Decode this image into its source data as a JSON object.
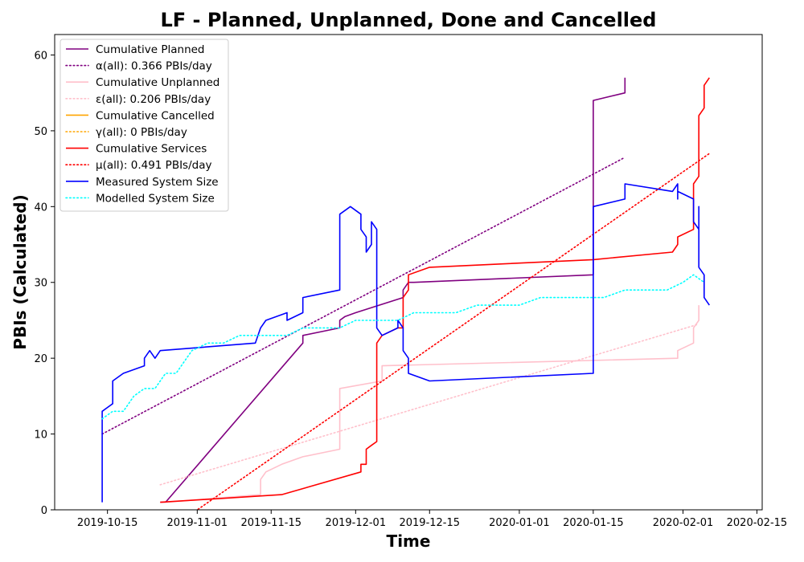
{
  "chart_data": {
    "type": "line",
    "title": "LF - Planned, Unplanned, Done  and Cancelled",
    "xlabel": "Time",
    "ylabel": "PBIs (Calculated)",
    "x_type": "date",
    "x_range": [
      "2019-10-05",
      "2020-02-16"
    ],
    "ylim": [
      0,
      62.7
    ],
    "x_ticks": [
      "2019-10-15",
      "2019-11-01",
      "2019-11-15",
      "2019-12-01",
      "2019-12-15",
      "2020-01-01",
      "2020-01-15",
      "2020-02-01",
      "2020-02-15"
    ],
    "y_ticks": [
      0,
      10,
      20,
      30,
      40,
      50,
      60
    ],
    "grid": false,
    "legend_position": "top-left",
    "series": [
      {
        "name": "Cumulative Planned",
        "color": "#800080",
        "style": "solid",
        "points": [
          [
            "2019-10-25",
            1
          ],
          [
            "2019-10-26",
            1
          ],
          [
            "2019-11-21",
            22
          ],
          [
            "2019-11-21",
            23
          ],
          [
            "2019-11-28",
            24
          ],
          [
            "2019-11-28",
            25
          ],
          [
            "2019-11-29",
            25.5
          ],
          [
            "2019-12-01",
            26
          ],
          [
            "2019-12-10",
            28
          ],
          [
            "2019-12-10",
            29
          ],
          [
            "2019-12-11",
            30
          ],
          [
            "2019-12-12",
            30
          ],
          [
            "2020-01-15",
            31
          ],
          [
            "2020-01-15",
            40
          ],
          [
            "2020-01-15",
            54
          ],
          [
            "2020-01-21",
            55
          ],
          [
            "2020-01-21",
            57
          ]
        ]
      },
      {
        "name": "α(all): 0.366 PBIs/day",
        "color": "#800080",
        "style": "dotted",
        "points": [
          [
            "2019-10-14",
            10
          ],
          [
            "2020-01-21",
            46.5
          ]
        ]
      },
      {
        "name": "Cumulative Unplanned",
        "color": "#ffc0cb",
        "style": "solid",
        "points": [
          [
            "2019-10-25",
            1
          ],
          [
            "2019-10-26",
            1
          ],
          [
            "2019-11-13",
            2
          ],
          [
            "2019-11-13",
            4
          ],
          [
            "2019-11-14",
            5
          ],
          [
            "2019-11-17",
            6
          ],
          [
            "2019-11-21",
            7
          ],
          [
            "2019-11-28",
            8
          ],
          [
            "2019-11-28",
            16
          ],
          [
            "2019-12-06",
            17
          ],
          [
            "2019-12-06",
            19
          ],
          [
            "2020-01-31",
            20
          ],
          [
            "2020-01-31",
            21
          ],
          [
            "2020-02-03",
            22
          ],
          [
            "2020-02-03",
            24
          ],
          [
            "2020-02-04",
            25
          ],
          [
            "2020-02-04",
            27
          ]
        ]
      },
      {
        "name": "ε(all): 0.206 PBIs/day",
        "color": "#ffc0cb",
        "style": "dotted",
        "points": [
          [
            "2019-10-25",
            3.3
          ],
          [
            "2020-02-04",
            24.5
          ]
        ]
      },
      {
        "name": "Cumulative Cancelled",
        "color": "#ffa500",
        "style": "solid",
        "points": []
      },
      {
        "name": "γ(all): 0 PBIs/day",
        "color": "#ffa500",
        "style": "dotted",
        "points": []
      },
      {
        "name": "Cumulative Services",
        "color": "#ff0000",
        "style": "solid",
        "points": [
          [
            "2019-10-25",
            1
          ],
          [
            "2019-11-17",
            2
          ],
          [
            "2019-12-02",
            5
          ],
          [
            "2019-12-02",
            6
          ],
          [
            "2019-12-03",
            6
          ],
          [
            "2019-12-03",
            8
          ],
          [
            "2019-12-04",
            8.5
          ],
          [
            "2019-12-05",
            9
          ],
          [
            "2019-12-05",
            22
          ],
          [
            "2019-12-06",
            23
          ],
          [
            "2019-12-09",
            24
          ],
          [
            "2019-12-10",
            24
          ],
          [
            "2019-12-10",
            28
          ],
          [
            "2019-12-11",
            29
          ],
          [
            "2019-12-11",
            31
          ],
          [
            "2019-12-15",
            32
          ],
          [
            "2020-01-15",
            33
          ],
          [
            "2020-01-30",
            34
          ],
          [
            "2020-01-31",
            35
          ],
          [
            "2020-01-31",
            36
          ],
          [
            "2020-02-03",
            37
          ],
          [
            "2020-02-03",
            43
          ],
          [
            "2020-02-04",
            44
          ],
          [
            "2020-02-04",
            52
          ],
          [
            "2020-02-05",
            53
          ],
          [
            "2020-02-05",
            56
          ],
          [
            "2020-02-06",
            57
          ]
        ]
      },
      {
        "name": "μ(all): 0.491 PBIs/day",
        "color": "#ff0000",
        "style": "dotted",
        "points": [
          [
            "2019-10-31",
            -0.5
          ],
          [
            "2020-02-06",
            47
          ]
        ]
      },
      {
        "name": "Measured System Size",
        "color": "#0000ff",
        "style": "solid",
        "points": [
          [
            "2019-10-14",
            1
          ],
          [
            "2019-10-14",
            13
          ],
          [
            "2019-10-15",
            13.5
          ],
          [
            "2019-10-16",
            14
          ],
          [
            "2019-10-16",
            17
          ],
          [
            "2019-10-18",
            18
          ],
          [
            "2019-10-22",
            19
          ],
          [
            "2019-10-22",
            20
          ],
          [
            "2019-10-23",
            21
          ],
          [
            "2019-10-24",
            20
          ],
          [
            "2019-10-25",
            21
          ],
          [
            "2019-11-12",
            22
          ],
          [
            "2019-11-13",
            24
          ],
          [
            "2019-11-14",
            25
          ],
          [
            "2019-11-18",
            26
          ],
          [
            "2019-11-18",
            25
          ],
          [
            "2019-11-21",
            26
          ],
          [
            "2019-11-21",
            28
          ],
          [
            "2019-11-28",
            29
          ],
          [
            "2019-11-28",
            39
          ],
          [
            "2019-11-30",
            40
          ],
          [
            "2019-12-02",
            39
          ],
          [
            "2019-12-02",
            37
          ],
          [
            "2019-12-03",
            36
          ],
          [
            "2019-12-03",
            34
          ],
          [
            "2019-12-04",
            35
          ],
          [
            "2019-12-04",
            38
          ],
          [
            "2019-12-05",
            37
          ],
          [
            "2019-12-05",
            24
          ],
          [
            "2019-12-06",
            23
          ],
          [
            "2019-12-09",
            24
          ],
          [
            "2019-12-09",
            25
          ],
          [
            "2019-12-10",
            24
          ],
          [
            "2019-12-10",
            21
          ],
          [
            "2019-12-11",
            20
          ],
          [
            "2019-12-11",
            19
          ],
          [
            "2019-12-11",
            18
          ],
          [
            "2019-12-15",
            17
          ],
          [
            "2020-01-15",
            18
          ],
          [
            "2020-01-15",
            25
          ],
          [
            "2020-01-15",
            40
          ],
          [
            "2020-01-21",
            41
          ],
          [
            "2020-01-21",
            43
          ],
          [
            "2020-01-30",
            42
          ],
          [
            "2020-01-31",
            43
          ],
          [
            "2020-01-31",
            41
          ],
          [
            "2020-01-31",
            42
          ],
          [
            "2020-02-03",
            41
          ],
          [
            "2020-02-03",
            40
          ],
          [
            "2020-02-03",
            38
          ],
          [
            "2020-02-04",
            37
          ],
          [
            "2020-02-04",
            40
          ],
          [
            "2020-02-04",
            32
          ],
          [
            "2020-02-05",
            31
          ],
          [
            "2020-02-05",
            28
          ],
          [
            "2020-02-06",
            27
          ]
        ]
      },
      {
        "name": "Modelled System Size",
        "color": "#00ffff",
        "style": "dotted",
        "points": [
          [
            "2019-10-14",
            12
          ],
          [
            "2019-10-16",
            13
          ],
          [
            "2019-10-18",
            13
          ],
          [
            "2019-10-20",
            15
          ],
          [
            "2019-10-22",
            16
          ],
          [
            "2019-10-24",
            16
          ],
          [
            "2019-10-26",
            18
          ],
          [
            "2019-10-28",
            18
          ],
          [
            "2019-10-31",
            21
          ],
          [
            "2019-11-03",
            22
          ],
          [
            "2019-11-06",
            22
          ],
          [
            "2019-11-09",
            23
          ],
          [
            "2019-11-12",
            23
          ],
          [
            "2019-11-15",
            23
          ],
          [
            "2019-11-18",
            23
          ],
          [
            "2019-11-21",
            24
          ],
          [
            "2019-11-25",
            24
          ],
          [
            "2019-11-28",
            24
          ],
          [
            "2019-12-01",
            25
          ],
          [
            "2019-12-05",
            25
          ],
          [
            "2019-12-09",
            25
          ],
          [
            "2019-12-12",
            26
          ],
          [
            "2019-12-16",
            26
          ],
          [
            "2019-12-20",
            26
          ],
          [
            "2019-12-24",
            27
          ],
          [
            "2019-12-28",
            27
          ],
          [
            "2020-01-01",
            27
          ],
          [
            "2020-01-05",
            28
          ],
          [
            "2020-01-09",
            28
          ],
          [
            "2020-01-13",
            28
          ],
          [
            "2020-01-17",
            28
          ],
          [
            "2020-01-21",
            29
          ],
          [
            "2020-01-25",
            29
          ],
          [
            "2020-01-29",
            29
          ],
          [
            "2020-02-01",
            30
          ],
          [
            "2020-02-03",
            31
          ],
          [
            "2020-02-05",
            30
          ]
        ]
      }
    ]
  }
}
